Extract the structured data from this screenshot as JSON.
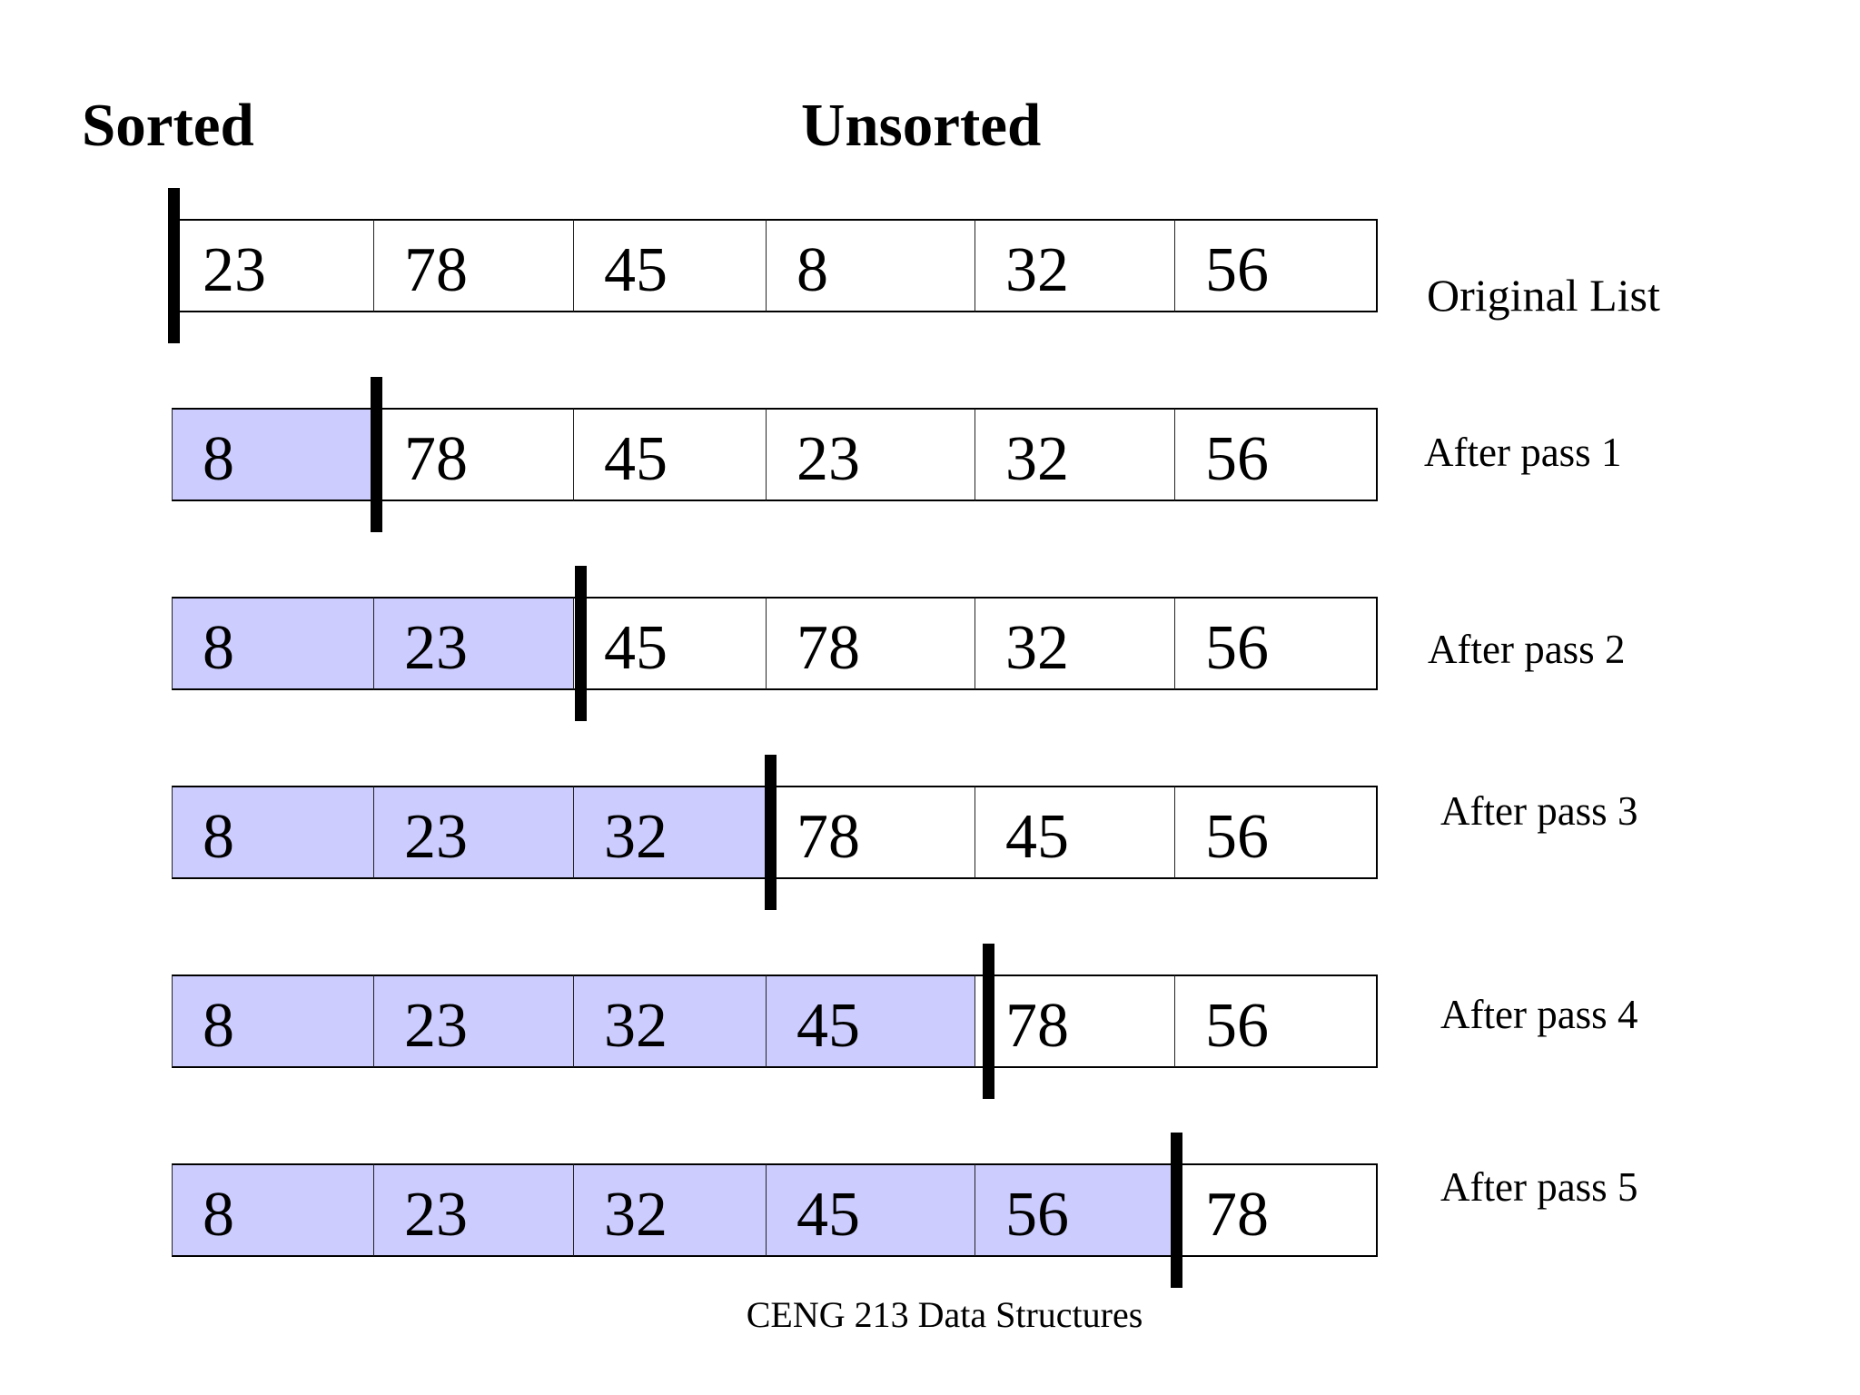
{
  "headings": {
    "sorted": "Sorted",
    "unsorted": "Unsorted"
  },
  "rows": [
    {
      "label": "Original List",
      "values": [
        "23",
        "78",
        "45",
        "8",
        "32",
        "56"
      ],
      "sorted_count": 0
    },
    {
      "label": "After pass 1",
      "values": [
        "8",
        "78",
        "45",
        "23",
        "32",
        "56"
      ],
      "sorted_count": 1
    },
    {
      "label": "After pass 2",
      "values": [
        "8",
        "23",
        "45",
        "78",
        "32",
        "56"
      ],
      "sorted_count": 2
    },
    {
      "label": "After pass 3",
      "values": [
        "8",
        "23",
        "32",
        "78",
        "45",
        "56"
      ],
      "sorted_count": 3
    },
    {
      "label": "After pass 4",
      "values": [
        "8",
        "23",
        "32",
        "45",
        "78",
        "56"
      ],
      "sorted_count": 4
    },
    {
      "label": "After pass 5",
      "values": [
        "8",
        "23",
        "32",
        "45",
        "56",
        "78"
      ],
      "sorted_count": 5
    }
  ],
  "footer": "CENG 213 Data Structures",
  "colors": {
    "sorted_fill": "#ccccff",
    "unsorted_fill": "#ffffff",
    "divider": "#000000"
  }
}
